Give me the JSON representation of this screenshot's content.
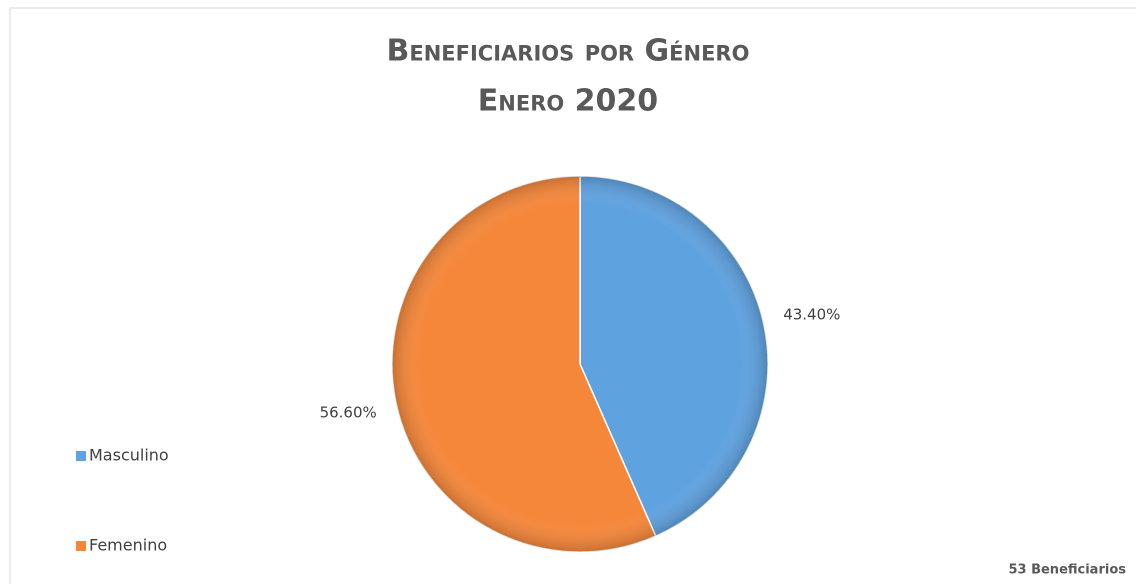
{
  "chart_data": {
    "type": "pie",
    "title": "Beneficiarios por Género",
    "subtitle": "Enero 2020",
    "categories": [
      "Masculino",
      "Femenino"
    ],
    "values": [
      43.4,
      56.6
    ],
    "value_labels": [
      "43.40%",
      "56.60%"
    ],
    "colors": [
      "#5fa2e0",
      "#f5873a"
    ],
    "legend": "left",
    "annotation": "53 Beneficiarios"
  }
}
